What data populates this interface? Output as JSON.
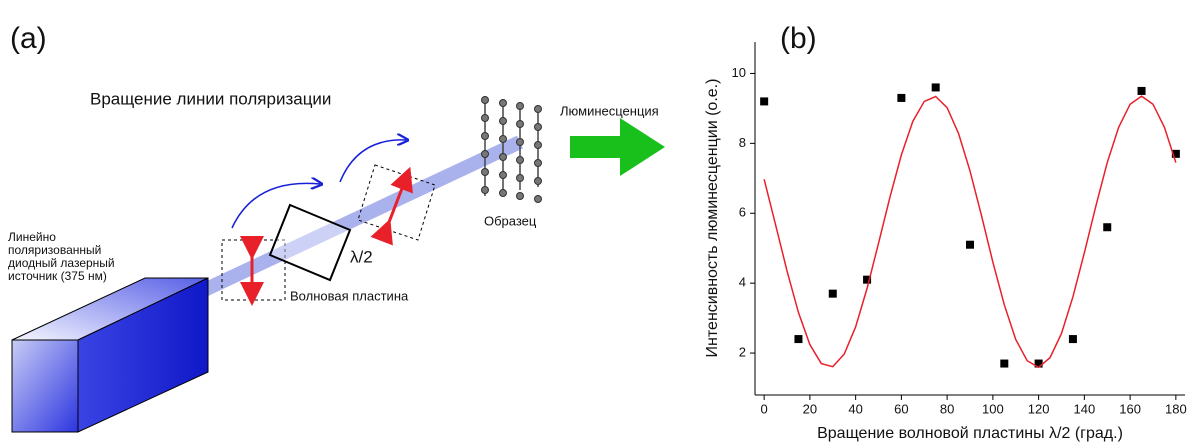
{
  "panel_a": {
    "label": "(a)",
    "title": "Вращение линии поляризации",
    "emission": "Люминесценция",
    "sample": "Образец",
    "plate_symbol": "λ/2",
    "plate": "Волновая пластина",
    "source": [
      "Линейно",
      "поляризованный",
      "диодный лазерный",
      "источник (375 нм)"
    ]
  },
  "chart_data": {
    "type": "scatter",
    "label": "(b)",
    "x_label": "Вращение волновой пластины λ/2 (град.)",
    "y_label": "Интенсивность люминесценции (о.е.)",
    "xlim": [
      -4,
      184
    ],
    "ylim": [
      0.8,
      10.9
    ],
    "xticks": [
      0,
      20,
      40,
      60,
      80,
      100,
      120,
      140,
      160,
      180
    ],
    "yticks": [
      2,
      4,
      6,
      8,
      10
    ],
    "series": [
      {
        "type": "scatter",
        "color": "#000000",
        "x": [
          0,
          15,
          30,
          45,
          60,
          75,
          90,
          105,
          120,
          135,
          150,
          165,
          180
        ],
        "values": [
          9.2,
          2.4,
          3.7,
          4.1,
          9.3,
          9.6,
          5.1,
          1.7,
          1.7,
          2.4,
          5.6,
          9.5,
          7.7
        ]
      },
      {
        "type": "line",
        "color": "#e8202a",
        "x": [
          0,
          5,
          10,
          15,
          20,
          25,
          30,
          35,
          40,
          45,
          50,
          55,
          60,
          65,
          70,
          75,
          80,
          85,
          90,
          95,
          100,
          105,
          110,
          115,
          120,
          125,
          130,
          135,
          140,
          145,
          150,
          155,
          160,
          165,
          170,
          175,
          180
        ],
        "values": [
          6.97,
          5.67,
          4.35,
          3.16,
          2.24,
          1.7,
          1.61,
          1.97,
          2.75,
          3.85,
          5.14,
          6.46,
          7.67,
          8.63,
          9.2,
          9.34,
          9.02,
          8.28,
          7.21,
          5.94,
          4.6,
          3.38,
          2.39,
          1.78,
          1.59,
          1.87,
          2.56,
          3.61,
          4.87,
          6.2,
          7.45,
          8.46,
          9.12,
          9.35,
          9.12,
          8.46,
          7.45
        ]
      }
    ]
  }
}
